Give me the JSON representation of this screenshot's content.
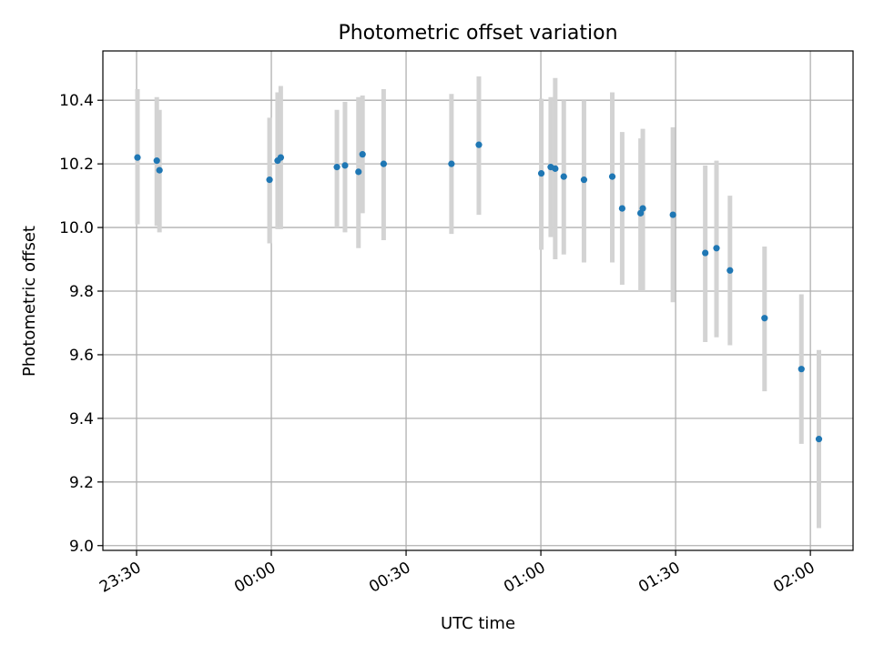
{
  "chart_data": {
    "type": "scatter",
    "title": "Photometric offset variation",
    "xlabel": "UTC time",
    "ylabel": "Photometric offset",
    "x_ticks": [
      {
        "t": "23:30",
        "label": "23:30"
      },
      {
        "t": "00:00",
        "label": "00:00"
      },
      {
        "t": "00:30",
        "label": "00:30"
      },
      {
        "t": "01:00",
        "label": "01:00"
      },
      {
        "t": "01:30",
        "label": "01:30"
      },
      {
        "t": "02:00",
        "label": "02:00"
      }
    ],
    "y_ticks": [
      {
        "v": 9.0,
        "label": "9.0"
      },
      {
        "v": 9.2,
        "label": "9.2"
      },
      {
        "v": 9.4,
        "label": "9.4"
      },
      {
        "v": 9.6,
        "label": "9.6"
      },
      {
        "v": 9.8,
        "label": "9.8"
      },
      {
        "v": 10.0,
        "label": "10.0"
      },
      {
        "v": 10.2,
        "label": "10.2"
      },
      {
        "v": 10.4,
        "label": "10.4"
      }
    ],
    "xlim": [
      "23:22.5",
      "02:09.5"
    ],
    "ylim": [
      8.985,
      10.555
    ],
    "grid": true,
    "colors": {
      "points": "#1f77b4",
      "errorbars": "#d3d3d3"
    },
    "points": [
      {
        "t": "23:30.2",
        "y": 10.22,
        "lo": 10.01,
        "hi": 10.435
      },
      {
        "t": "23:34.5",
        "y": 10.21,
        "lo": 10.005,
        "hi": 10.41
      },
      {
        "t": "23:35.1",
        "y": 10.18,
        "lo": 9.985,
        "hi": 10.37
      },
      {
        "t": "23:59.6",
        "y": 10.15,
        "lo": 9.95,
        "hi": 10.345
      },
      {
        "t": "00:01.4",
        "y": 10.21,
        "lo": 9.995,
        "hi": 10.425
      },
      {
        "t": "00:02.1",
        "y": 10.22,
        "lo": 9.995,
        "hi": 10.445
      },
      {
        "t": "00:14.6",
        "y": 10.19,
        "lo": 10.0,
        "hi": 10.37
      },
      {
        "t": "00:16.4",
        "y": 10.195,
        "lo": 9.985,
        "hi": 10.395
      },
      {
        "t": "00:19.4",
        "y": 10.175,
        "lo": 9.935,
        "hi": 10.41
      },
      {
        "t": "00:20.3",
        "y": 10.23,
        "lo": 10.045,
        "hi": 10.415
      },
      {
        "t": "00:25.0",
        "y": 10.2,
        "lo": 9.96,
        "hi": 10.435
      },
      {
        "t": "00:40.1",
        "y": 10.2,
        "lo": 9.98,
        "hi": 10.42
      },
      {
        "t": "00:46.2",
        "y": 10.26,
        "lo": 10.04,
        "hi": 10.475
      },
      {
        "t": "01:00.1",
        "y": 10.17,
        "lo": 9.93,
        "hi": 10.405
      },
      {
        "t": "01:02.2",
        "y": 10.19,
        "lo": 9.97,
        "hi": 10.41
      },
      {
        "t": "01:03.2",
        "y": 10.185,
        "lo": 9.9,
        "hi": 10.47
      },
      {
        "t": "01:05.1",
        "y": 10.16,
        "lo": 9.915,
        "hi": 10.4
      },
      {
        "t": "01:09.6",
        "y": 10.15,
        "lo": 9.89,
        "hi": 10.4
      },
      {
        "t": "01:15.9",
        "y": 10.16,
        "lo": 9.89,
        "hi": 10.425
      },
      {
        "t": "01:18.1",
        "y": 10.06,
        "lo": 9.82,
        "hi": 10.3
      },
      {
        "t": "01:22.2",
        "y": 10.045,
        "lo": 9.8,
        "hi": 10.28
      },
      {
        "t": "01:22.7",
        "y": 10.06,
        "lo": 9.8,
        "hi": 10.31
      },
      {
        "t": "01:29.4",
        "y": 10.04,
        "lo": 9.765,
        "hi": 10.315
      },
      {
        "t": "01:36.6",
        "y": 9.92,
        "lo": 9.64,
        "hi": 10.195
      },
      {
        "t": "01:39.1",
        "y": 9.935,
        "lo": 9.655,
        "hi": 10.21
      },
      {
        "t": "01:42.1",
        "y": 9.865,
        "lo": 9.63,
        "hi": 10.1
      },
      {
        "t": "01:49.8",
        "y": 9.715,
        "lo": 9.485,
        "hi": 9.94
      },
      {
        "t": "01:58.0",
        "y": 9.555,
        "lo": 9.32,
        "hi": 9.79
      },
      {
        "t": "02:01.9",
        "y": 9.335,
        "lo": 9.055,
        "hi": 9.615
      }
    ]
  }
}
